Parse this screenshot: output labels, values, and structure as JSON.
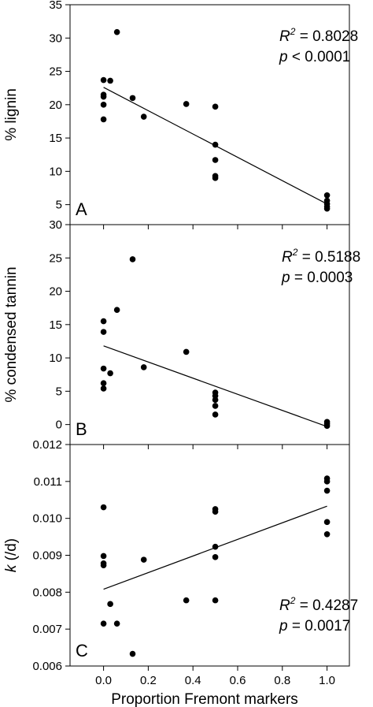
{
  "chart_data": [
    {
      "type": "scatter",
      "panel_label": "A",
      "ylabel": "% lignin",
      "ylim": [
        2,
        35
      ],
      "yticks": [
        "5",
        "10",
        "15",
        "20",
        "25",
        "30",
        "35"
      ],
      "stats": {
        "r2_text": "= 0.8028",
        "p_text": "< 0.0001"
      },
      "points": [
        {
          "x": 0.0,
          "y": 23.7
        },
        {
          "x": 0.0,
          "y": 21.5
        },
        {
          "x": 0.0,
          "y": 21.2
        },
        {
          "x": 0.0,
          "y": 20.0
        },
        {
          "x": 0.0,
          "y": 17.8
        },
        {
          "x": 0.03,
          "y": 23.6
        },
        {
          "x": 0.06,
          "y": 30.9
        },
        {
          "x": 0.13,
          "y": 21.0
        },
        {
          "x": 0.18,
          "y": 18.2
        },
        {
          "x": 0.37,
          "y": 20.1
        },
        {
          "x": 0.5,
          "y": 19.7
        },
        {
          "x": 0.5,
          "y": 14.0
        },
        {
          "x": 0.5,
          "y": 11.7
        },
        {
          "x": 0.5,
          "y": 9.3
        },
        {
          "x": 0.5,
          "y": 9.0
        },
        {
          "x": 1.0,
          "y": 6.4
        },
        {
          "x": 1.0,
          "y": 5.6
        },
        {
          "x": 1.0,
          "y": 5.1
        },
        {
          "x": 1.0,
          "y": 4.7
        },
        {
          "x": 1.0,
          "y": 4.4
        }
      ],
      "fit_line": {
        "x": [
          0.0,
          1.0
        ],
        "y": [
          22.6,
          5.1
        ]
      }
    },
    {
      "type": "scatter",
      "panel_label": "B",
      "ylabel": "% condensed tannin",
      "ylim": [
        -3,
        30
      ],
      "yticks": [
        "0",
        "5",
        "10",
        "15",
        "20",
        "25",
        "30"
      ],
      "stats": {
        "r2_text": "= 0.5188",
        "p_text": "= 0.0003"
      },
      "points": [
        {
          "x": 0.0,
          "y": 15.5
        },
        {
          "x": 0.0,
          "y": 13.9
        },
        {
          "x": 0.0,
          "y": 8.4
        },
        {
          "x": 0.0,
          "y": 6.2
        },
        {
          "x": 0.0,
          "y": 5.4
        },
        {
          "x": 0.03,
          "y": 7.7
        },
        {
          "x": 0.06,
          "y": 17.2
        },
        {
          "x": 0.13,
          "y": 24.8
        },
        {
          "x": 0.18,
          "y": 8.6
        },
        {
          "x": 0.37,
          "y": 10.9
        },
        {
          "x": 0.5,
          "y": 4.8
        },
        {
          "x": 0.5,
          "y": 4.3
        },
        {
          "x": 0.5,
          "y": 3.7
        },
        {
          "x": 0.5,
          "y": 2.8
        },
        {
          "x": 0.5,
          "y": 1.5
        },
        {
          "x": 1.0,
          "y": 0.4
        },
        {
          "x": 1.0,
          "y": 0.1
        },
        {
          "x": 1.0,
          "y": -0.2
        }
      ],
      "fit_line": {
        "x": [
          0.0,
          1.0
        ],
        "y": [
          11.8,
          -0.3
        ]
      }
    },
    {
      "type": "scatter",
      "panel_label": "C",
      "ylabel": "k (/d)",
      "ylim": [
        0.006,
        0.012
      ],
      "yticks": [
        "0.006",
        "0.007",
        "0.008",
        "0.009",
        "0.010",
        "0.011",
        "0.012"
      ],
      "stats": {
        "r2_text": "= 0.4287",
        "p_text": "= 0.0017"
      },
      "points": [
        {
          "x": 0.0,
          "y": 0.0103
        },
        {
          "x": 0.0,
          "y": 0.00898
        },
        {
          "x": 0.0,
          "y": 0.00878
        },
        {
          "x": 0.0,
          "y": 0.00873
        },
        {
          "x": 0.0,
          "y": 0.00715
        },
        {
          "x": 0.03,
          "y": 0.00768
        },
        {
          "x": 0.06,
          "y": 0.00715
        },
        {
          "x": 0.13,
          "y": 0.00633
        },
        {
          "x": 0.18,
          "y": 0.00888
        },
        {
          "x": 0.37,
          "y": 0.00778
        },
        {
          "x": 0.5,
          "y": 0.01025
        },
        {
          "x": 0.5,
          "y": 0.01018
        },
        {
          "x": 0.5,
          "y": 0.00923
        },
        {
          "x": 0.5,
          "y": 0.00895
        },
        {
          "x": 0.5,
          "y": 0.00778
        },
        {
          "x": 1.0,
          "y": 0.01108
        },
        {
          "x": 1.0,
          "y": 0.011
        },
        {
          "x": 1.0,
          "y": 0.01075
        },
        {
          "x": 1.0,
          "y": 0.0099
        },
        {
          "x": 1.0,
          "y": 0.00957
        }
      ],
      "fit_line": {
        "x": [
          0.0,
          1.0
        ],
        "y": [
          0.00808,
          0.01033
        ]
      }
    }
  ],
  "x_axis": {
    "xlabel": "Proportion Fremont markers",
    "xlim": [
      -0.15,
      1.1
    ],
    "ticks": [
      {
        "value": 0.0,
        "label": "0.0"
      },
      {
        "value": 0.2,
        "label": "0.2"
      },
      {
        "value": 0.4,
        "label": "0.4"
      },
      {
        "value": 0.6,
        "label": "0.6"
      },
      {
        "value": 0.8,
        "label": "0.8"
      },
      {
        "value": 1.0,
        "label": "1.0"
      }
    ]
  },
  "stat_labels": {
    "r": "R",
    "r_sup": "2",
    "p": "p"
  },
  "ylabel_c": {
    "italic": "k",
    "rest": " (/d)"
  }
}
